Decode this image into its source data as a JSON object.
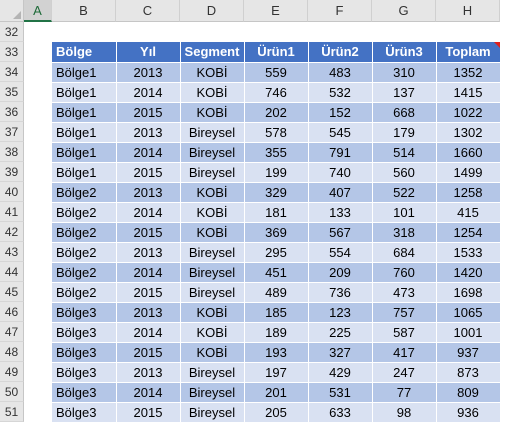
{
  "columns": [
    "A",
    "B",
    "C",
    "D",
    "E",
    "F",
    "G",
    "H"
  ],
  "active_column": "A",
  "row_numbers": [
    "32",
    "33",
    "34",
    "35",
    "36",
    "37",
    "38",
    "39",
    "40",
    "41",
    "42",
    "43",
    "44",
    "45",
    "46",
    "47",
    "48",
    "49",
    "50",
    "51"
  ],
  "table": {
    "headers": [
      "Bölge",
      "Yıl",
      "Segment",
      "Ürün1",
      "Ürün2",
      "Ürün3",
      "Toplam"
    ],
    "rows": [
      [
        "Bölge1",
        "2013",
        "KOBİ",
        "559",
        "483",
        "310",
        "1352"
      ],
      [
        "Bölge1",
        "2014",
        "KOBİ",
        "746",
        "532",
        "137",
        "1415"
      ],
      [
        "Bölge1",
        "2015",
        "KOBİ",
        "202",
        "152",
        "668",
        "1022"
      ],
      [
        "Bölge1",
        "2013",
        "Bireysel",
        "578",
        "545",
        "179",
        "1302"
      ],
      [
        "Bölge1",
        "2014",
        "Bireysel",
        "355",
        "791",
        "514",
        "1660"
      ],
      [
        "Bölge1",
        "2015",
        "Bireysel",
        "199",
        "740",
        "560",
        "1499"
      ],
      [
        "Bölge2",
        "2013",
        "KOBİ",
        "329",
        "407",
        "522",
        "1258"
      ],
      [
        "Bölge2",
        "2014",
        "KOBİ",
        "181",
        "133",
        "101",
        "415"
      ],
      [
        "Bölge2",
        "2015",
        "KOBİ",
        "369",
        "567",
        "318",
        "1254"
      ],
      [
        "Bölge2",
        "2013",
        "Bireysel",
        "295",
        "554",
        "684",
        "1533"
      ],
      [
        "Bölge2",
        "2014",
        "Bireysel",
        "451",
        "209",
        "760",
        "1420"
      ],
      [
        "Bölge2",
        "2015",
        "Bireysel",
        "489",
        "736",
        "473",
        "1698"
      ],
      [
        "Bölge3",
        "2013",
        "KOBİ",
        "185",
        "123",
        "757",
        "1065"
      ],
      [
        "Bölge3",
        "2014",
        "KOBİ",
        "189",
        "225",
        "587",
        "1001"
      ],
      [
        "Bölge3",
        "2015",
        "KOBİ",
        "193",
        "327",
        "417",
        "937"
      ],
      [
        "Bölge3",
        "2013",
        "Bireysel",
        "197",
        "429",
        "247",
        "873"
      ],
      [
        "Bölge3",
        "2014",
        "Bireysel",
        "201",
        "531",
        "77",
        "809"
      ],
      [
        "Bölge3",
        "2015",
        "Bireysel",
        "205",
        "633",
        "98",
        "936"
      ]
    ]
  },
  "colors": {
    "header_fill": "#4472c4",
    "band_dark": "#b4c6e7",
    "band_light": "#d9e1f2",
    "comment_indicator": "#e0201c"
  }
}
